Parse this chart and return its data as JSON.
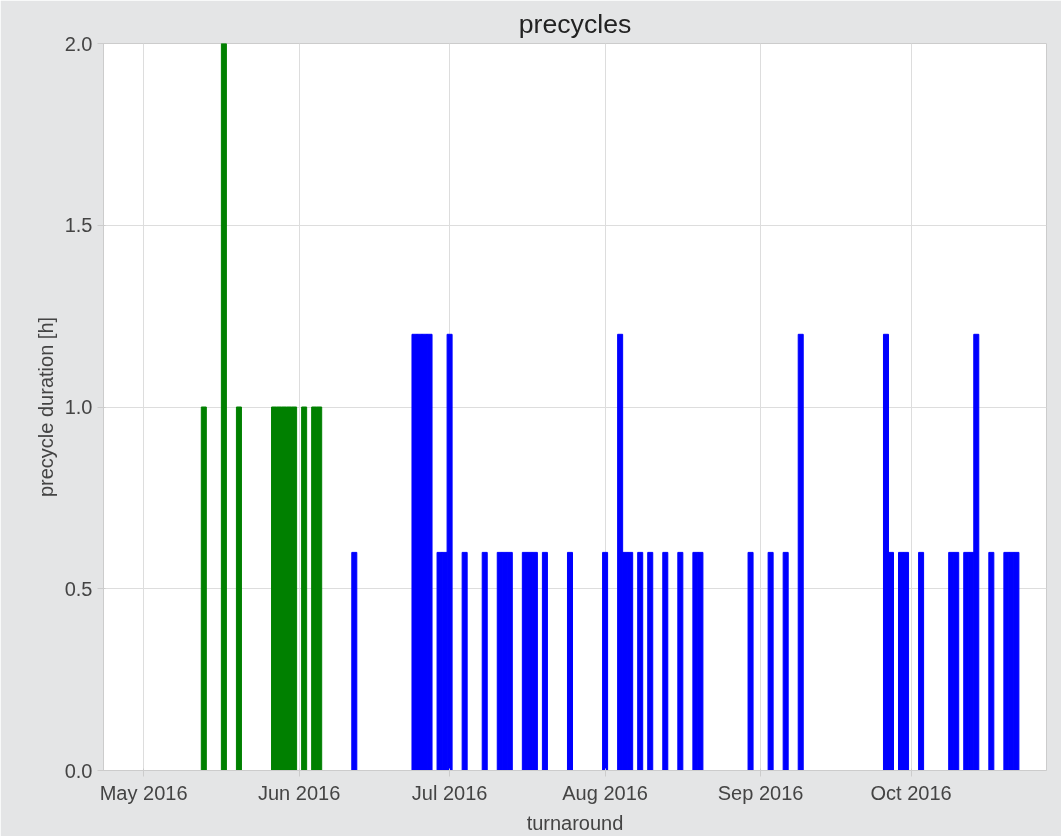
{
  "chart_data": {
    "type": "bar",
    "title": "precycles",
    "xlabel": "turnaround",
    "ylabel": "precycle duration [h]",
    "series": [
      {
        "color": "#008000",
        "x": [
          "2016-05-13",
          "2016-05-17",
          "2016-05-20",
          "2016-05-27",
          "2016-05-28",
          "2016-05-29",
          "2016-05-30",
          "2016-05-31",
          "2016-06-02",
          "2016-06-04",
          "2016-06-05"
        ],
        "values": [
          1.0,
          2.0,
          1.0,
          1.0,
          1.0,
          1.0,
          1.0,
          1.0,
          1.0,
          1.0,
          1.0
        ]
      },
      {
        "color": "#0000ff",
        "x": [
          "2016-06-12",
          "2016-06-24",
          "2016-06-25",
          "2016-06-26",
          "2016-06-27",
          "2016-06-29",
          "2016-06-30",
          "2016-07-01",
          "2016-07-04",
          "2016-07-08",
          "2016-07-11",
          "2016-07-12",
          "2016-07-13",
          "2016-07-16",
          "2016-07-17",
          "2016-07-18",
          "2016-07-20",
          "2016-07-25",
          "2016-08-01",
          "2016-08-04",
          "2016-08-05",
          "2016-08-06",
          "2016-08-08",
          "2016-08-10",
          "2016-08-13",
          "2016-08-16",
          "2016-08-19",
          "2016-08-20",
          "2016-08-30",
          "2016-09-03",
          "2016-09-06",
          "2016-09-09",
          "2016-09-26",
          "2016-09-27",
          "2016-09-29",
          "2016-09-30",
          "2016-10-03",
          "2016-10-09",
          "2016-10-10",
          "2016-10-12",
          "2016-10-13",
          "2016-10-14",
          "2016-10-17",
          "2016-10-20",
          "2016-10-21",
          "2016-10-22"
        ],
        "values": [
          0.6,
          1.2,
          1.2,
          1.2,
          1.2,
          0.6,
          0.6,
          1.2,
          0.6,
          0.6,
          0.6,
          0.6,
          0.6,
          0.6,
          0.6,
          0.6,
          0.6,
          0.6,
          0.6,
          1.2,
          0.6,
          0.6,
          0.6,
          0.6,
          0.6,
          0.6,
          0.6,
          0.6,
          0.6,
          0.6,
          0.6,
          1.2,
          1.2,
          0.6,
          0.6,
          0.6,
          0.6,
          0.6,
          0.6,
          0.6,
          0.6,
          1.2,
          0.6,
          0.6,
          0.6,
          0.6
        ]
      }
    ],
    "xlim": [
      "2016-04-23",
      "2016-10-28"
    ],
    "xticks": [
      {
        "value": "2016-05-01",
        "label": "May 2016"
      },
      {
        "value": "2016-06-01",
        "label": "Jun 2016"
      },
      {
        "value": "2016-07-01",
        "label": "Jul 2016"
      },
      {
        "value": "2016-08-01",
        "label": "Aug 2016"
      },
      {
        "value": "2016-09-01",
        "label": "Sep 2016"
      },
      {
        "value": "2016-10-01",
        "label": "Oct 2016"
      }
    ],
    "ylim": [
      0,
      2.0
    ],
    "yticks": [
      {
        "value": 0,
        "label": "0.0"
      },
      0.5,
      {
        "value": 1.0,
        "label": "1.0"
      },
      1.5,
      {
        "value": 2.0,
        "label": "2.0"
      }
    ],
    "grid": true
  }
}
